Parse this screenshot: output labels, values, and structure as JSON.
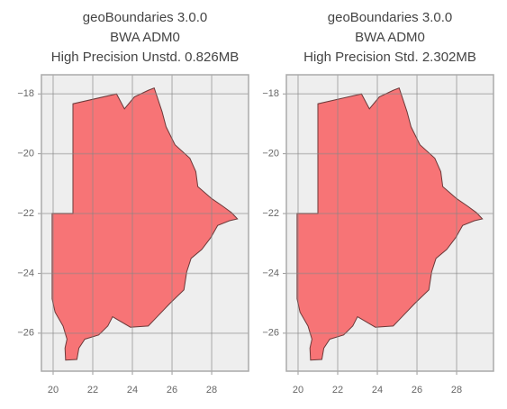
{
  "chart_data": [
    {
      "type": "map",
      "title": [
        "geoBoundaries 3.0.0",
        "BWA ADM0",
        "High Precision Unstd. 0.826MB"
      ],
      "color": "#f77476",
      "x": [
        19.95,
        21.0,
        21.0,
        23.2,
        23.6,
        24.1,
        24.8,
        25.1,
        25.5,
        25.7,
        26.15,
        26.9,
        27.2,
        27.3,
        28.0,
        28.55,
        29.0,
        29.3,
        28.9,
        28.3,
        27.96,
        27.5,
        26.96,
        26.74,
        26.6,
        25.9,
        25.25,
        24.8,
        23.9,
        23.0,
        22.76,
        22.3,
        21.6,
        21.3,
        21.2,
        20.63,
        20.6,
        20.7,
        20.5,
        20.1,
        19.95
      ],
      "y": [
        -22.0,
        -22.0,
        -18.33,
        -18.0,
        -18.5,
        -18.1,
        -17.88,
        -17.8,
        -18.6,
        -19.1,
        -19.7,
        -20.15,
        -20.6,
        -21.1,
        -21.5,
        -21.75,
        -21.97,
        -22.18,
        -22.24,
        -22.4,
        -22.8,
        -23.2,
        -23.5,
        -23.95,
        -24.55,
        -25.0,
        -25.45,
        -25.76,
        -25.8,
        -25.45,
        -25.76,
        -26.06,
        -26.2,
        -26.5,
        -26.88,
        -26.9,
        -26.5,
        -26.2,
        -25.76,
        -25.3,
        -24.85
      ],
      "xlim": [
        19.41,
        29.86
      ],
      "ylim": [
        -27.27,
        -17.36
      ],
      "xticks": [
        20,
        22,
        24,
        26,
        28
      ],
      "yticks": [
        {
          "value": -18,
          "label": "−18"
        },
        {
          "value": -20,
          "label": "−20"
        },
        {
          "value": -22,
          "label": "−22"
        },
        {
          "value": -24,
          "label": "−24"
        },
        {
          "value": -26,
          "label": "−26"
        }
      ],
      "grid": true
    },
    {
      "type": "map",
      "title": [
        "geoBoundaries 3.0.0",
        "BWA ADM0",
        "High Precision Std. 2.302MB"
      ],
      "color": "#f77476",
      "x": [
        19.95,
        21.0,
        21.0,
        23.2,
        23.6,
        24.1,
        24.8,
        25.1,
        25.5,
        25.7,
        26.15,
        26.9,
        27.2,
        27.3,
        28.0,
        28.55,
        29.0,
        29.3,
        28.9,
        28.3,
        27.96,
        27.5,
        26.96,
        26.74,
        26.6,
        25.9,
        25.25,
        24.8,
        23.9,
        23.0,
        22.76,
        22.3,
        21.6,
        21.3,
        21.2,
        20.63,
        20.6,
        20.7,
        20.5,
        20.1,
        19.95
      ],
      "y": [
        -22.0,
        -22.0,
        -18.33,
        -18.0,
        -18.5,
        -18.1,
        -17.88,
        -17.8,
        -18.6,
        -19.1,
        -19.7,
        -20.15,
        -20.6,
        -21.1,
        -21.5,
        -21.75,
        -21.97,
        -22.18,
        -22.24,
        -22.4,
        -22.8,
        -23.2,
        -23.5,
        -23.95,
        -24.55,
        -25.0,
        -25.45,
        -25.76,
        -25.8,
        -25.45,
        -25.76,
        -26.06,
        -26.2,
        -26.5,
        -26.88,
        -26.9,
        -26.5,
        -26.2,
        -25.76,
        -25.3,
        -24.85
      ],
      "xlim": [
        19.41,
        29.86
      ],
      "ylim": [
        -27.27,
        -17.36
      ],
      "xticks": [
        20,
        22,
        24,
        26,
        28
      ],
      "yticks": [
        {
          "value": -18,
          "label": "−18"
        },
        {
          "value": -20,
          "label": "−20"
        },
        {
          "value": -22,
          "label": "−22"
        },
        {
          "value": -24,
          "label": "−24"
        },
        {
          "value": -26,
          "label": "−26"
        }
      ],
      "grid": true
    }
  ]
}
